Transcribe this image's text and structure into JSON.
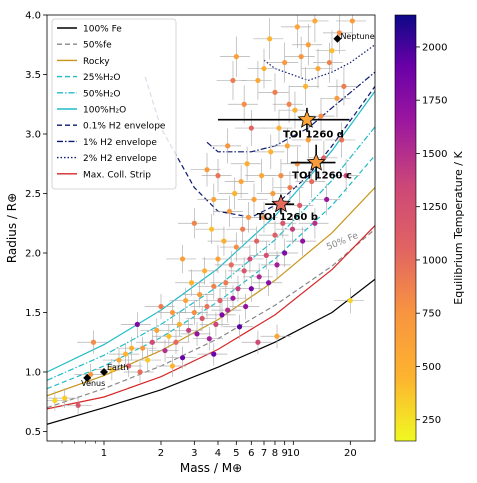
{
  "chart_data": {
    "type": "scatter",
    "xlabel": "Mass / M⊕",
    "ylabel": "Radius / R⊕",
    "xscale": "log",
    "xlim": [
      0.5,
      27
    ],
    "ylim": [
      0.42,
      4.0
    ],
    "x_ticks": [
      1,
      2,
      3,
      4,
      5,
      6,
      7,
      8,
      9,
      10,
      20
    ],
    "x_tick_labels": [
      "1",
      "2",
      "3",
      "4",
      "5",
      "6",
      "7",
      "8",
      "9",
      "10",
      "20"
    ],
    "y_ticks": [
      0.5,
      1.0,
      1.5,
      2.0,
      2.5,
      3.0,
      3.5,
      4.0
    ],
    "y_tick_labels": [
      "0.5",
      "1.0",
      "1.5",
      "2.0",
      "2.5",
      "3.0",
      "3.5",
      "4.0"
    ],
    "grid": false,
    "legend_position": "top-left",
    "legend": [
      {
        "label": "100% Fe",
        "color": "#000000",
        "dash": "solid"
      },
      {
        "label": "50%fe",
        "color": "#888888",
        "dash": "dashed"
      },
      {
        "label": "Rocky",
        "color": "#c8941a",
        "dash": "solid"
      },
      {
        "label": "25%H₂O",
        "color": "#1fbcc8",
        "dash": "dashed"
      },
      {
        "label": "50%H₂O",
        "color": "#1fbcc8",
        "dash": "dashdot"
      },
      {
        "label": "100%H₂O",
        "color": "#1fbcc8",
        "dash": "solid"
      },
      {
        "label": "0.1% H2 envelope",
        "color": "#0b1a6e",
        "dash": "dashed"
      },
      {
        "label": "1% H2 envelope",
        "color": "#0b1a6e",
        "dash": "dashdot"
      },
      {
        "label": "2% H2 envelope",
        "color": "#0b1a6e",
        "dash": "dotted"
      },
      {
        "label": "Max. Coll. Strip",
        "color": "#d62728",
        "dash": "solid"
      }
    ],
    "curve_annotation": "50% Fe",
    "colorbar": {
      "label": "Equilibrium Temperature / K",
      "range": [
        150,
        2150
      ],
      "ticks": [
        250,
        500,
        750,
        1000,
        1250,
        1500,
        1750,
        2000
      ],
      "tick_labels": [
        "250",
        "500",
        "750",
        "1000",
        "1250",
        "1500",
        "1750",
        "2000"
      ],
      "colormap": "plasma"
    },
    "highlighted_planets": [
      {
        "label": "TOI 1260 b",
        "mass": 8.6,
        "radius": 2.41,
        "mass_err": [
          1.5,
          1.5
        ],
        "radius_err": [
          0.08,
          0.08
        ],
        "teq": 1000
      },
      {
        "label": "TOI 1260 c",
        "mass": 13.2,
        "radius": 2.76,
        "mass_err": [
          3.5,
          3.5
        ],
        "radius_err": [
          0.15,
          0.15
        ],
        "teq": 700
      },
      {
        "label": "TOI 1260 d",
        "mass": 11.8,
        "radius": 3.12,
        "mass_err": [
          7.8,
          8.0
        ],
        "radius_err": [
          0.1,
          0.1
        ],
        "teq": 600
      }
    ],
    "solar_system": [
      {
        "label": "Earth",
        "mass": 1.0,
        "radius": 1.0
      },
      {
        "label": "Venus",
        "mass": 0.815,
        "radius": 0.95
      },
      {
        "label": "Neptune",
        "mass": 17.1,
        "radius": 3.8
      }
    ],
    "curves": [
      {
        "name": "100% Fe",
        "x": [
          0.5,
          1,
          2,
          4,
          8,
          16,
          27
        ],
        "y": [
          0.56,
          0.7,
          0.85,
          1.04,
          1.25,
          1.5,
          1.78
        ]
      },
      {
        "name": "50%fe",
        "x": [
          0.5,
          1,
          2,
          4,
          8,
          16,
          27
        ],
        "y": [
          0.7,
          0.86,
          1.05,
          1.28,
          1.56,
          1.89,
          2.2
        ]
      },
      {
        "name": "Rocky",
        "x": [
          0.5,
          1,
          2,
          4,
          8,
          16,
          27
        ],
        "y": [
          0.8,
          0.97,
          1.18,
          1.44,
          1.77,
          2.17,
          2.55
        ]
      },
      {
        "name": "25%H₂O",
        "x": [
          0.5,
          1,
          2,
          4,
          8,
          16,
          27
        ],
        "y": [
          0.86,
          1.05,
          1.29,
          1.59,
          1.95,
          2.4,
          2.82
        ]
      },
      {
        "name": "50%H₂O",
        "x": [
          0.5,
          1,
          2,
          4,
          8,
          16,
          27
        ],
        "y": [
          0.93,
          1.14,
          1.4,
          1.72,
          2.11,
          2.61,
          3.06
        ]
      },
      {
        "name": "100%H₂O",
        "x": [
          0.5,
          1,
          2,
          4,
          8,
          16,
          27
        ],
        "y": [
          1.0,
          1.23,
          1.52,
          1.87,
          2.31,
          2.86,
          3.36
        ]
      },
      {
        "name": "0.1% H2 envelope",
        "x": [
          1.65,
          2,
          3,
          4,
          6,
          8,
          12,
          16,
          27
        ],
        "y": [
          3.48,
          3.05,
          2.55,
          2.35,
          2.3,
          2.4,
          2.65,
          2.9,
          3.4
        ]
      },
      {
        "name": "1% H2 envelope",
        "x": [
          3.5,
          4,
          6,
          8,
          12,
          16,
          27
        ],
        "y": [
          2.93,
          2.85,
          2.85,
          2.9,
          3.05,
          3.22,
          3.52
        ]
      },
      {
        "name": "2% H2 envelope",
        "x": [
          7,
          8,
          12,
          16,
          20,
          27
        ],
        "y": [
          3.62,
          3.55,
          3.45,
          3.52,
          3.6,
          3.75
        ]
      },
      {
        "name": "Max. Coll. Strip",
        "x": [
          0.5,
          1,
          2,
          4,
          8,
          16,
          27
        ],
        "y": [
          0.69,
          0.79,
          0.96,
          1.19,
          1.48,
          1.86,
          2.23
        ]
      }
    ],
    "points": [
      [
        0.55,
        0.76,
        300
      ],
      [
        0.62,
        0.78,
        350
      ],
      [
        0.73,
        0.72,
        1200
      ],
      [
        0.85,
        0.98,
        700
      ],
      [
        0.88,
        1.25,
        800
      ],
      [
        1.1,
        1.02,
        400
      ],
      [
        1.2,
        1.1,
        600
      ],
      [
        1.3,
        1.15,
        450
      ],
      [
        1.35,
        1.05,
        1100
      ],
      [
        1.4,
        1.2,
        500
      ],
      [
        1.5,
        1.4,
        1800
      ],
      [
        1.6,
        1.2,
        700
      ],
      [
        1.7,
        1.1,
        350
      ],
      [
        1.8,
        1.25,
        1300
      ],
      [
        1.9,
        1.35,
        600
      ],
      [
        2.0,
        1.55,
        900
      ],
      [
        2.1,
        1.18,
        1500
      ],
      [
        2.2,
        1.3,
        400
      ],
      [
        2.3,
        1.5,
        700
      ],
      [
        2.4,
        1.25,
        1000
      ],
      [
        2.5,
        1.4,
        500
      ],
      [
        2.6,
        1.12,
        1900
      ],
      [
        2.7,
        1.6,
        600
      ],
      [
        2.8,
        1.35,
        1400
      ],
      [
        2.9,
        1.75,
        450
      ],
      [
        3.0,
        1.5,
        800
      ],
      [
        3.1,
        1.32,
        1700
      ],
      [
        3.2,
        1.65,
        700
      ],
      [
        3.3,
        1.45,
        1200
      ],
      [
        3.4,
        1.85,
        500
      ],
      [
        3.5,
        1.55,
        950
      ],
      [
        3.6,
        1.28,
        1600
      ],
      [
        3.7,
        2.2,
        400
      ],
      [
        3.8,
        1.72,
        850
      ],
      [
        3.9,
        1.4,
        1350
      ],
      [
        4.0,
        1.95,
        600
      ],
      [
        4.1,
        1.6,
        1100
      ],
      [
        4.2,
        1.48,
        1800
      ],
      [
        4.3,
        2.1,
        500
      ],
      [
        4.4,
        1.75,
        900
      ],
      [
        4.5,
        1.52,
        1500
      ],
      [
        4.6,
        2.35,
        700
      ],
      [
        4.7,
        1.9,
        1000
      ],
      [
        4.8,
        1.62,
        1650
      ],
      [
        4.9,
        2.5,
        450
      ],
      [
        5.0,
        2.05,
        800
      ],
      [
        5.1,
        1.7,
        1400
      ],
      [
        5.2,
        1.38,
        1950
      ],
      [
        5.3,
        2.6,
        600
      ],
      [
        5.4,
        2.2,
        900
      ],
      [
        5.5,
        1.85,
        1200
      ],
      [
        5.6,
        1.55,
        1700
      ],
      [
        5.7,
        2.75,
        500
      ],
      [
        5.8,
        2.3,
        750
      ],
      [
        5.9,
        1.95,
        1300
      ],
      [
        6.0,
        1.7,
        1850
      ],
      [
        6.2,
        2.45,
        650
      ],
      [
        6.4,
        2.1,
        1050
      ],
      [
        6.6,
        1.8,
        1550
      ],
      [
        6.8,
        2.65,
        550
      ],
      [
        7.0,
        2.3,
        850
      ],
      [
        7.2,
        1.98,
        1250
      ],
      [
        7.4,
        1.75,
        1750
      ],
      [
        7.6,
        2.85,
        450
      ],
      [
        7.8,
        2.5,
        700
      ],
      [
        8.0,
        2.15,
        1100
      ],
      [
        8.2,
        1.9,
        1600
      ],
      [
        8.4,
        3.05,
        500
      ],
      [
        8.6,
        2.65,
        800
      ],
      [
        8.8,
        2.25,
        1200
      ],
      [
        9.0,
        2.0,
        1800
      ],
      [
        9.3,
        2.9,
        600
      ],
      [
        9.6,
        2.55,
        900
      ],
      [
        9.9,
        2.2,
        1400
      ],
      [
        10.2,
        3.2,
        500
      ],
      [
        10.5,
        2.75,
        750
      ],
      [
        10.8,
        2.4,
        1150
      ],
      [
        11.2,
        2.1,
        1700
      ],
      [
        11.6,
        3.4,
        450
      ],
      [
        12.0,
        2.95,
        650
      ],
      [
        12.5,
        2.6,
        1000
      ],
      [
        13.0,
        2.25,
        1500
      ],
      [
        13.5,
        3.55,
        550
      ],
      [
        14.0,
        3.15,
        800
      ],
      [
        14.5,
        2.8,
        1100
      ],
      [
        15.0,
        2.45,
        1650
      ],
      [
        16.0,
        3.7,
        400
      ],
      [
        17.0,
        3.3,
        700
      ],
      [
        18.0,
        2.95,
        950
      ],
      [
        19.0,
        2.65,
        1350
      ],
      [
        7.5,
        3.8,
        450
      ],
      [
        9.0,
        3.6,
        700
      ],
      [
        10.5,
        3.9,
        600
      ],
      [
        6.5,
        3.45,
        550
      ],
      [
        12.0,
        3.75,
        650
      ],
      [
        5.5,
        3.25,
        800
      ],
      [
        8.0,
        3.35,
        900
      ],
      [
        4.5,
        2.9,
        750
      ],
      [
        4.0,
        2.65,
        950
      ],
      [
        3.8,
        2.45,
        600
      ],
      [
        6.0,
        3.05,
        1050
      ],
      [
        7.0,
        3.55,
        500
      ],
      [
        11.0,
        3.65,
        750
      ],
      [
        13.0,
        3.95,
        550
      ],
      [
        15.5,
        3.6,
        850
      ],
      [
        18.5,
        3.4,
        900
      ],
      [
        20.5,
        3.95,
        700
      ],
      [
        17.5,
        3.85,
        800
      ],
      [
        9.5,
        3.25,
        850
      ],
      [
        5.0,
        3.65,
        650
      ],
      [
        4.8,
        3.45,
        900
      ],
      [
        3.5,
        2.7,
        700
      ],
      [
        3.0,
        2.25,
        850
      ],
      [
        2.6,
        1.95,
        650
      ],
      [
        20.0,
        1.6,
        300
      ],
      [
        8.2,
        1.3,
        600
      ],
      [
        1.55,
        1.0,
        1000
      ],
      [
        2.3,
        1.05,
        450
      ],
      [
        3.8,
        1.15,
        1900
      ],
      [
        6.5,
        1.25,
        1300
      ]
    ]
  }
}
